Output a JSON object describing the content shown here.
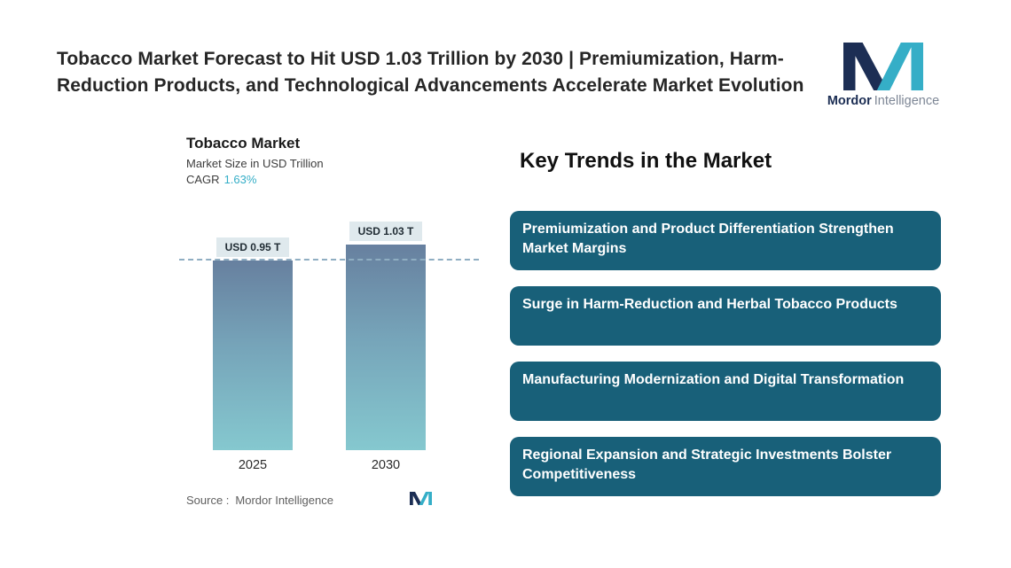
{
  "page": {
    "title": "Tobacco Market Forecast to Hit USD 1.03 Trillion by 2030 | Premiumization, Harm-Reduction Products, and Technological Advancements Accelerate Market Evolution"
  },
  "logo": {
    "name_bold": "Mordor",
    "name_light": "Intelligence"
  },
  "chart": {
    "title": "Tobacco Market",
    "subtitle": "Market Size in USD Trillion",
    "cagr_label": "CAGR",
    "cagr_value": "1.63%",
    "source_label": "Source :",
    "source_value": "Mordor Intelligence"
  },
  "chart_data": {
    "type": "bar",
    "title": "Tobacco Market",
    "ylabel": "Market Size in USD Trillion",
    "categories": [
      "2025",
      "2030"
    ],
    "values": [
      0.95,
      1.03
    ],
    "value_labels": [
      "USD 0.95 T",
      "USD 1.03 T"
    ],
    "cagr": "1.63%",
    "reference_line_at": 0.95,
    "ylim": [
      0,
      1.1
    ],
    "grid": false,
    "legend": false
  },
  "trends": {
    "heading": "Key Trends in the Market",
    "items": [
      "Premiumization and Product Differentiation Strengthen Market Margins",
      "Surge in Harm-Reduction and Herbal Tobacco Products",
      "Manufacturing Modernization and Digital Transformation",
      "Regional Expansion and Strategic Investments Bolster Competitiveness"
    ]
  },
  "colors": {
    "accent_teal": "#35aec7",
    "navy": "#1c2e54",
    "trend_card_bg": "#186079",
    "bar_gradient_top": "#67809f",
    "bar_gradient_bottom": "#85c8cf",
    "value_chip_bg": "#dfe9ed",
    "dashed_line": "#8faec2"
  }
}
